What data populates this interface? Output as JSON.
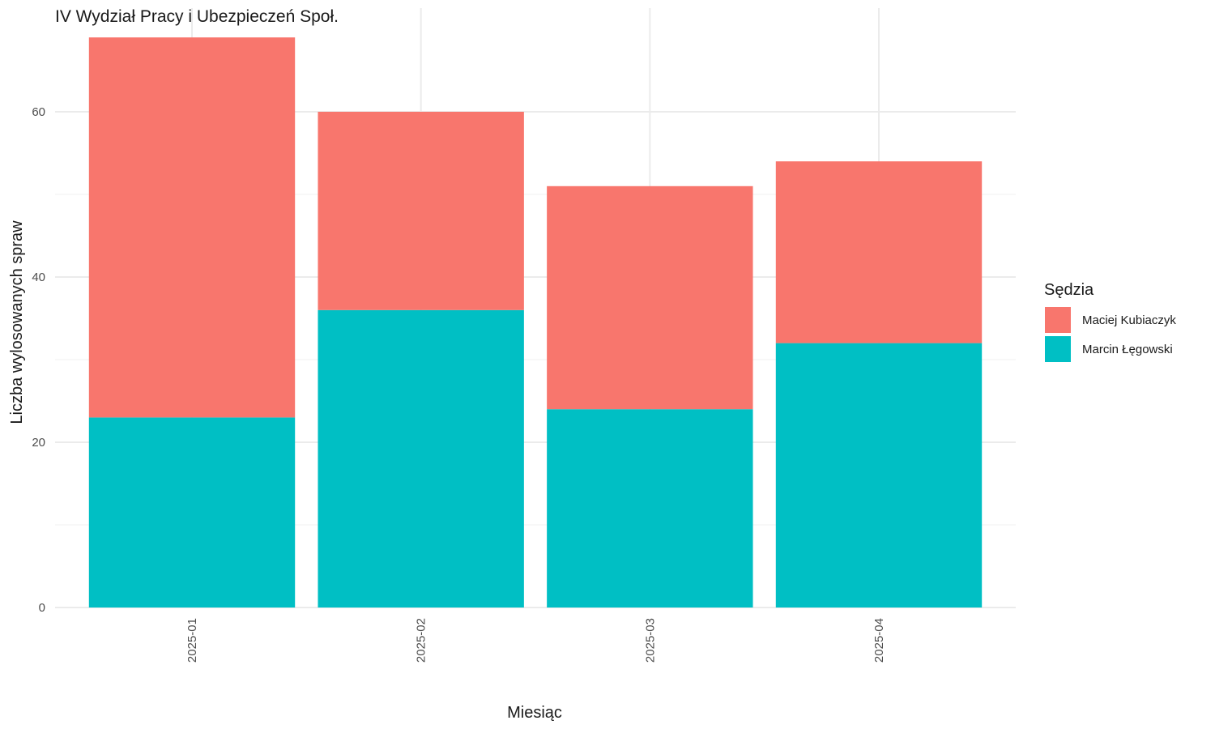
{
  "chart_data": {
    "type": "bar",
    "stacked": true,
    "title": "IV Wydział Pracy i Ubezpieczeń Społ.",
    "xlabel": "Miesiąc",
    "ylabel": "Liczba wylosowanych spraw",
    "categories": [
      "2025-01",
      "2025-02",
      "2025-03",
      "2025-04"
    ],
    "series": [
      {
        "name": "Marcin Łęgowski",
        "color": "#00BFC4",
        "values": [
          23,
          36,
          24,
          32
        ]
      },
      {
        "name": "Maciej Kubiaczyk",
        "color": "#F8766D",
        "values": [
          46,
          24,
          27,
          22
        ]
      }
    ],
    "ylim": [
      0,
      70
    ],
    "yticks": [
      0,
      20,
      40,
      60
    ],
    "yticks_minor": [
      10,
      30,
      50
    ],
    "grid": true,
    "legend": {
      "title": "Sędzia",
      "placement": "right",
      "order": [
        "Maciej Kubiaczyk",
        "Marcin Łęgowski"
      ]
    }
  }
}
